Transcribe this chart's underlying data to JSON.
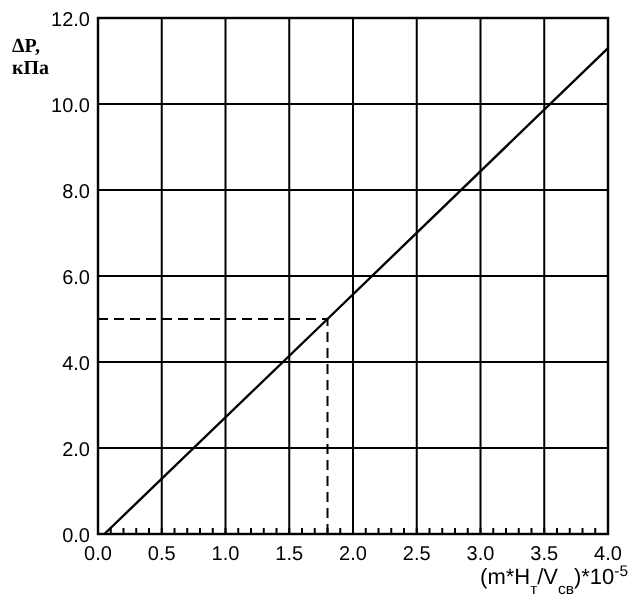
{
  "chart_data": {
    "type": "line",
    "xlabel": "(m*H$_{т}$/V$_{св}$)*10$^{-5}$",
    "ylabel": "ΔP,\nкПа",
    "series": [
      {
        "color": "#000000",
        "x": [
          0.05,
          1.8,
          4.0
        ],
        "values": [
          0,
          5.0,
          11.3
        ]
      }
    ],
    "xlim": [
      0,
      4.0
    ],
    "ylim": [
      0,
      12.0
    ],
    "xticks": [
      {
        "value": 0,
        "label": "0.0"
      },
      {
        "value": 0.5,
        "label": "0.5"
      },
      {
        "value": 1,
        "label": "1.0"
      },
      {
        "value": 1.5,
        "label": "1.5"
      },
      {
        "value": 2,
        "label": "2.0"
      },
      {
        "value": 2.5,
        "label": "2.5"
      },
      {
        "value": 3,
        "label": "3.0"
      },
      {
        "value": 3.5,
        "label": "3.5"
      },
      {
        "value": 4,
        "label": "4.0"
      }
    ],
    "yticks": [
      {
        "value": 0,
        "label": "0.0"
      },
      {
        "value": 2,
        "label": "2.0"
      },
      {
        "value": 4,
        "label": "4.0"
      },
      {
        "value": 6,
        "label": "6.0"
      },
      {
        "value": 8,
        "label": "8.0"
      },
      {
        "value": 10,
        "label": "10.0"
      },
      {
        "value": 12,
        "label": "12.0"
      }
    ],
    "grid": true,
    "marker": "none",
    "line_style": "solid",
    "ref_lines": [
      {
        "axis": "x",
        "value": 1.8,
        "line_style": "dashed"
      },
      {
        "axis": "y",
        "value": 5.0,
        "line_style": "dashed"
      }
    ]
  }
}
